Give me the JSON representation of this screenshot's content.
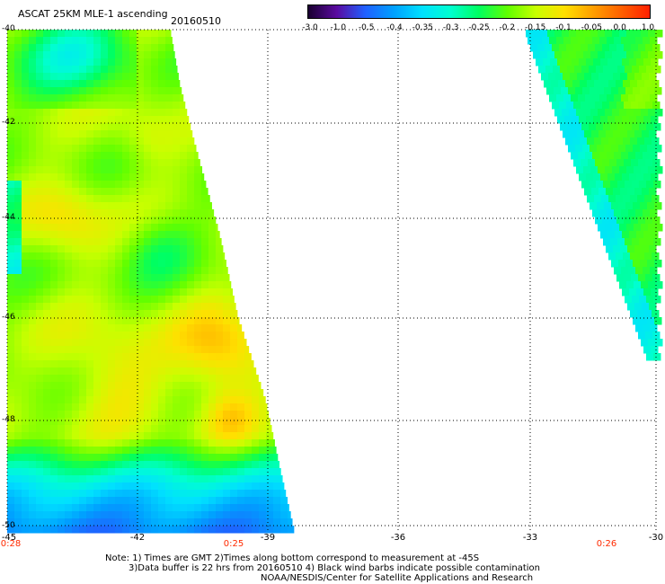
{
  "header": {
    "title": "ASCAT 25KM MLE-1 ascending",
    "date": "20160510"
  },
  "colorbar": {
    "labels": [
      "-3.0",
      "-1.0",
      "-0.5",
      "-0.4",
      "-0.35",
      "-0.3",
      "-0.25",
      "-0.2",
      "-0.15",
      "-0.1",
      "-0.05",
      "0.0",
      "1.0"
    ],
    "colors": [
      "#1a0030",
      "#5a0aa0",
      "#2060ff",
      "#00a0ff",
      "#00e0ff",
      "#00ffd0",
      "#00ff60",
      "#60ff00",
      "#c8ff00",
      "#ffe000",
      "#ffa000",
      "#ff6000",
      "#ff2000"
    ]
  },
  "map": {
    "lat_labels": [
      "-40",
      "-42",
      "-44",
      "-46",
      "-48",
      "-50"
    ],
    "lon_labels": [
      "-45",
      "-42",
      "-39",
      "-36",
      "-33",
      "-30"
    ],
    "time_labels": [
      "0:28",
      "0:25",
      "0:26"
    ]
  },
  "footer": {
    "note_line1": "Note: 1) Times are GMT 2)Times along bottom correspond to measurement at -45S",
    "note_line2": "3)Data buffer is 22 hrs from 20160510 4) Black wind barbs indicate possible contamination",
    "credit": "NOAA/NESDIS/Center for Satellite Applications and Research"
  }
}
